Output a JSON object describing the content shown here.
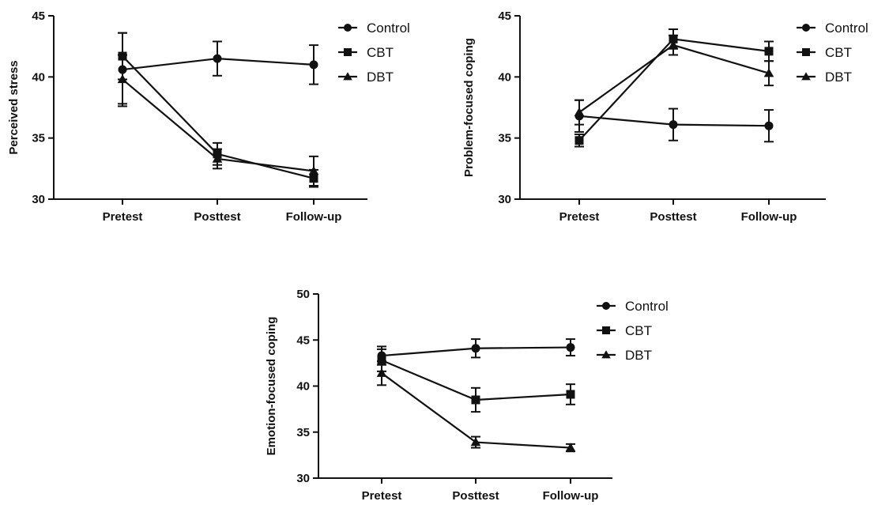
{
  "colors": {
    "ink": "#111111",
    "background": "#ffffff"
  },
  "chart_data": [
    {
      "type": "line",
      "title": "",
      "xlabel": "",
      "ylabel": "Perceived stress",
      "categories": [
        "Pretest",
        "Posttest",
        "Follow-up"
      ],
      "ylim": [
        30,
        45
      ],
      "yticks": [
        "30",
        "35",
        "40",
        "45"
      ],
      "grid": false,
      "legend_position": "top-right",
      "series": [
        {
          "name": "Control",
          "marker": "circle",
          "values": [
            40.6,
            41.5,
            41.0
          ],
          "error": [
            3.0,
            1.4,
            1.6
          ]
        },
        {
          "name": "CBT",
          "marker": "square",
          "values": [
            41.7,
            33.7,
            31.7
          ],
          "error": [
            1.9,
            0.9,
            0.7
          ]
        },
        {
          "name": "DBT",
          "marker": "triangle",
          "values": [
            39.8,
            33.3,
            32.3
          ],
          "error": [
            2.0,
            0.8,
            1.2
          ]
        }
      ]
    },
    {
      "type": "line",
      "title": "",
      "xlabel": "",
      "ylabel": "Problem-focused coping",
      "categories": [
        "Pretest",
        "Posttest",
        "Follow-up"
      ],
      "ylim": [
        30,
        45
      ],
      "yticks": [
        "30",
        "35",
        "40",
        "45"
      ],
      "grid": false,
      "legend_position": "top-right",
      "series": [
        {
          "name": "Control",
          "marker": "circle",
          "values": [
            36.8,
            36.1,
            36.0
          ],
          "error": [
            1.3,
            1.3,
            1.3
          ]
        },
        {
          "name": "CBT",
          "marker": "square",
          "values": [
            34.8,
            43.1,
            42.1
          ],
          "error": [
            0.5,
            0.8,
            0.8
          ]
        },
        {
          "name": "DBT",
          "marker": "triangle",
          "values": [
            37.1,
            42.6,
            40.3
          ],
          "error": [
            1.0,
            0.8,
            1.0
          ]
        }
      ]
    },
    {
      "type": "line",
      "title": "",
      "xlabel": "",
      "ylabel": "Emotion-focused coping",
      "categories": [
        "Pretest",
        "Posttest",
        "Follow-up"
      ],
      "ylim": [
        30,
        50
      ],
      "yticks": [
        "30",
        "35",
        "40",
        "45",
        "50"
      ],
      "grid": false,
      "legend_position": "top-right",
      "series": [
        {
          "name": "Control",
          "marker": "circle",
          "values": [
            43.3,
            44.1,
            44.2
          ],
          "error": [
            1.0,
            1.0,
            0.9
          ]
        },
        {
          "name": "CBT",
          "marker": "square",
          "values": [
            42.8,
            38.5,
            39.1
          ],
          "error": [
            1.2,
            1.3,
            1.1
          ]
        },
        {
          "name": "DBT",
          "marker": "triangle",
          "values": [
            41.4,
            33.9,
            33.3
          ],
          "error": [
            1.3,
            0.6,
            0.4
          ]
        }
      ]
    }
  ]
}
